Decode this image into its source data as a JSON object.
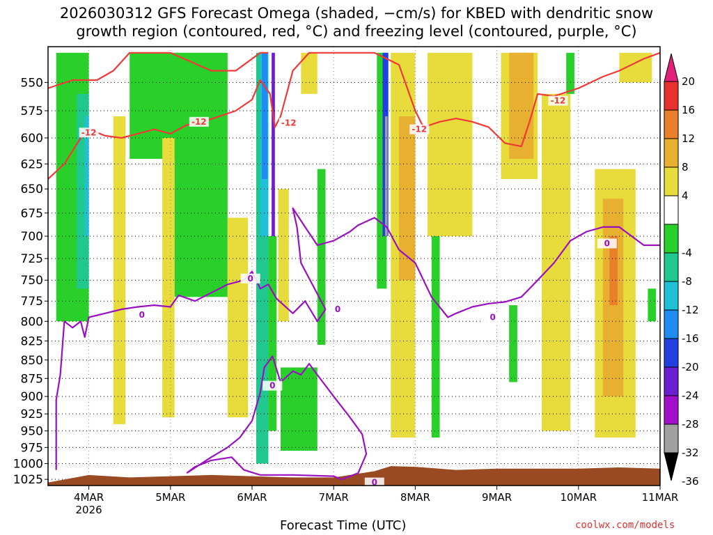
{
  "title_line1": "2026030312 GFS Forecast Omega (shaded, −cm/s) for KBED with dendritic snow",
  "title_line2": "growth region (contoured, red, °C) and freezing level (contoured, purple, °C)",
  "footer": {
    "xlabel": "Forecast Time (UTC)",
    "source": "coolwx.com/models"
  },
  "chart_data": {
    "type": "heatmap",
    "title": "2026030312 GFS Forecast Omega (shaded, −cm/s) for KBED with dendritic snow growth region (contoured, red, °C) and freezing level (contoured, purple, °C)",
    "xlabel": "Forecast Time (UTC)",
    "ylabel": "",
    "x_ticks": [
      {
        "t": 0.5,
        "label": "4MAR",
        "sub": "2026"
      },
      {
        "t": 1.5,
        "label": "5MAR",
        "sub": ""
      },
      {
        "t": 2.5,
        "label": "6MAR",
        "sub": ""
      },
      {
        "t": 3.5,
        "label": "7MAR",
        "sub": ""
      },
      {
        "t": 4.5,
        "label": "8MAR",
        "sub": ""
      },
      {
        "t": 5.5,
        "label": "9MAR",
        "sub": ""
      },
      {
        "t": 6.5,
        "label": "10MAR",
        "sub": ""
      },
      {
        "t": 7.5,
        "label": "11MAR",
        "sub": ""
      }
    ],
    "xlim": [
      0,
      7.5
    ],
    "y_ticks": [
      550,
      575,
      600,
      625,
      650,
      675,
      700,
      725,
      750,
      775,
      800,
      825,
      850,
      875,
      900,
      925,
      950,
      975,
      1000,
      1025
    ],
    "ylim": [
      520,
      1035
    ],
    "y_scale": "log-pressure",
    "grid": true,
    "colorbar": {
      "ticks": [
        20,
        16,
        12,
        8,
        4,
        -4,
        -8,
        -12,
        -16,
        -20,
        -24,
        -28,
        -32,
        -36
      ],
      "bins": [
        {
          "range": [
            16,
            20
          ],
          "color": "#e83030"
        },
        {
          "range": [
            12,
            16
          ],
          "color": "#e8802a"
        },
        {
          "range": [
            8,
            12
          ],
          "color": "#e8b030"
        },
        {
          "range": [
            4,
            8
          ],
          "color": "#e8dc3c"
        },
        {
          "range": [
            -4,
            4
          ],
          "color": "#ffffff"
        },
        {
          "range": [
            -8,
            -4
          ],
          "color": "#2ad02a"
        },
        {
          "range": [
            -12,
            -8
          ],
          "color": "#20c890"
        },
        {
          "range": [
            -16,
            -12
          ],
          "color": "#20c0d8"
        },
        {
          "range": [
            -20,
            -16
          ],
          "color": "#1e8cf0"
        },
        {
          "range": [
            -24,
            -20
          ],
          "color": "#2040e0"
        },
        {
          "range": [
            -28,
            -24
          ],
          "color": "#6a20d0"
        },
        {
          "range": [
            -32,
            -28
          ],
          "color": "#a010c8"
        },
        {
          "range": [
            -36,
            -32
          ],
          "color": "#a0a0a0"
        }
      ],
      "top_arrow_color": "#e0207a",
      "bottom_arrow_color": "#000000"
    },
    "terrain_color": "#9a4a22",
    "terrain": [
      [
        0,
        1030
      ],
      [
        0.5,
        1018
      ],
      [
        1,
        1022
      ],
      [
        1.5,
        1020
      ],
      [
        2,
        1018
      ],
      [
        2.5,
        1020
      ],
      [
        3,
        1022
      ],
      [
        3.5,
        1022
      ],
      [
        4,
        1012
      ],
      [
        4.2,
        1004
      ],
      [
        4.5,
        1005
      ],
      [
        5,
        1010
      ],
      [
        5.5,
        1008
      ],
      [
        6,
        1008
      ],
      [
        6.5,
        1008
      ],
      [
        7,
        1006
      ],
      [
        7.5,
        1008
      ]
    ],
    "omega_patches": [
      {
        "t": [
          0.1,
          0.5
        ],
        "p": [
          525,
          800
        ],
        "value": -8
      },
      {
        "t": [
          0.35,
          0.5
        ],
        "p": [
          560,
          760
        ],
        "value": -12
      },
      {
        "t": [
          0.45,
          0.5
        ],
        "p": [
          580,
          700
        ],
        "value": -16
      },
      {
        "t": [
          1.0,
          1.6
        ],
        "p": [
          525,
          620
        ],
        "value": -8
      },
      {
        "t": [
          1.55,
          2.2
        ],
        "p": [
          525,
          770
        ],
        "value": -8
      },
      {
        "t": [
          2.55,
          2.7
        ],
        "p": [
          525,
          1000
        ],
        "value": -12
      },
      {
        "t": [
          2.6,
          2.7
        ],
        "p": [
          525,
          700
        ],
        "value": -16
      },
      {
        "t": [
          2.62,
          2.69
        ],
        "p": [
          525,
          640
        ],
        "value": -20
      },
      {
        "t": [
          2.74,
          2.78
        ],
        "p": [
          525,
          700
        ],
        "value": -28
      },
      {
        "t": [
          2.7,
          2.8
        ],
        "p": [
          700,
          950
        ],
        "value": -8
      },
      {
        "t": [
          2.85,
          3.3
        ],
        "p": [
          860,
          980
        ],
        "value": -8
      },
      {
        "t": [
          3.3,
          3.4
        ],
        "p": [
          630,
          830
        ],
        "value": -8
      },
      {
        "t": [
          4.03,
          4.15
        ],
        "p": [
          525,
          760
        ],
        "value": -8
      },
      {
        "t": [
          4.1,
          4.17
        ],
        "p": [
          525,
          700
        ],
        "value": -24
      },
      {
        "t": [
          4.13,
          4.16
        ],
        "p": [
          580,
          700
        ],
        "value": -36
      },
      {
        "t": [
          4.7,
          4.8
        ],
        "p": [
          690,
          960
        ],
        "value": -8
      },
      {
        "t": [
          5.65,
          5.75
        ],
        "p": [
          780,
          880
        ],
        "value": -8
      },
      {
        "t": [
          6.35,
          6.45
        ],
        "p": [
          525,
          560
        ],
        "value": -8
      },
      {
        "t": [
          7.35,
          7.45
        ],
        "p": [
          760,
          800
        ],
        "value": -8
      },
      {
        "t": [
          0.8,
          0.95
        ],
        "p": [
          580,
          940
        ],
        "value": 4
      },
      {
        "t": [
          1.4,
          1.55
        ],
        "p": [
          600,
          930
        ],
        "value": 4
      },
      {
        "t": [
          2.2,
          2.45
        ],
        "p": [
          680,
          930
        ],
        "value": 4
      },
      {
        "t": [
          2.82,
          2.95
        ],
        "p": [
          650,
          800
        ],
        "value": 4
      },
      {
        "t": [
          3.1,
          3.3
        ],
        "p": [
          525,
          560
        ],
        "value": 4
      },
      {
        "t": [
          4.2,
          4.5
        ],
        "p": [
          525,
          960
        ],
        "value": 4
      },
      {
        "t": [
          4.3,
          4.5
        ],
        "p": [
          580,
          750
        ],
        "value": 8
      },
      {
        "t": [
          4.65,
          5.2
        ],
        "p": [
          525,
          700
        ],
        "value": 4
      },
      {
        "t": [
          5.55,
          6.0
        ],
        "p": [
          525,
          640
        ],
        "value": 4
      },
      {
        "t": [
          5.65,
          5.95
        ],
        "p": [
          525,
          620
        ],
        "value": 8
      },
      {
        "t": [
          6.05,
          6.4
        ],
        "p": [
          560,
          950
        ],
        "value": 4
      },
      {
        "t": [
          6.7,
          7.2
        ],
        "p": [
          630,
          960
        ],
        "value": 4
      },
      {
        "t": [
          6.8,
          7.05
        ],
        "p": [
          660,
          900
        ],
        "value": 8
      },
      {
        "t": [
          6.88,
          6.98
        ],
        "p": [
          700,
          780
        ],
        "value": 12
      },
      {
        "t": [
          7.0,
          7.4
        ],
        "p": [
          525,
          550
        ],
        "value": 4
      }
    ],
    "series": [
      {
        "name": "-12",
        "color": "#f03838",
        "label_points": [
          [
            0.5,
            595
          ],
          [
            1.85,
            585
          ],
          [
            2.95,
            586
          ],
          [
            4.55,
            592
          ],
          [
            6.25,
            566
          ]
        ],
        "lines": [
          [
            [
              0,
              555
            ],
            [
              0.3,
              548
            ],
            [
              0.6,
              548
            ],
            [
              0.8,
              540
            ],
            [
              1.0,
              525
            ],
            [
              1.5,
              525
            ],
            [
              2.0,
              540
            ],
            [
              2.3,
              540
            ],
            [
              2.6,
              525
            ],
            [
              2.7,
              525
            ]
          ],
          [
            [
              0,
              640
            ],
            [
              0.2,
              625
            ],
            [
              0.4,
              600
            ],
            [
              0.5,
              592
            ],
            [
              0.7,
              598
            ],
            [
              0.9,
              600
            ],
            [
              1.1,
              596
            ],
            [
              1.3,
              592
            ],
            [
              1.5,
              596
            ],
            [
              1.7,
              588
            ],
            [
              1.9,
              585
            ],
            [
              2.1,
              580
            ],
            [
              2.3,
              575
            ],
            [
              2.5,
              565
            ],
            [
              2.6,
              548
            ],
            [
              2.72,
              560
            ],
            [
              2.78,
              590
            ],
            [
              2.85,
              580
            ],
            [
              3.0,
              540
            ],
            [
              3.2,
              525
            ],
            [
              4.0,
              525
            ],
            [
              4.3,
              535
            ],
            [
              4.5,
              575
            ],
            [
              4.6,
              590
            ]
          ],
          [
            [
              4.6,
              590
            ],
            [
              4.8,
              585
            ],
            [
              5.0,
              582
            ],
            [
              5.2,
              585
            ],
            [
              5.4,
              590
            ],
            [
              5.6,
              605
            ],
            [
              5.8,
              608
            ],
            [
              5.9,
              585
            ],
            [
              6.0,
              560
            ],
            [
              6.2,
              562
            ],
            [
              6.5,
              555
            ],
            [
              6.8,
              545
            ],
            [
              7.0,
              540
            ],
            [
              7.3,
              530
            ],
            [
              7.5,
              525
            ]
          ]
        ]
      },
      {
        "name": "0",
        "color": "#9a10c0",
        "label_points": [
          [
            1.15,
            792
          ],
          [
            2.48,
            748
          ],
          [
            3.55,
            785
          ],
          [
            5.45,
            795
          ],
          [
            6.85,
            708
          ],
          [
            2.75,
            885
          ],
          [
            4.0,
            1030
          ]
        ],
        "lines": [
          [
            [
              0.1,
              1010
            ],
            [
              0.1,
              905
            ],
            [
              0.15,
              870
            ],
            [
              0.2,
              800
            ],
            [
              0.3,
              808
            ],
            [
              0.4,
              800
            ],
            [
              0.45,
              820
            ],
            [
              0.5,
              795
            ],
            [
              0.7,
              790
            ],
            [
              0.9,
              785
            ],
            [
              1.1,
              782
            ],
            [
              1.3,
              780
            ],
            [
              1.5,
              782
            ],
            [
              1.6,
              768
            ],
            [
              1.8,
              775
            ],
            [
              2.0,
              765
            ],
            [
              2.2,
              755
            ],
            [
              2.4,
              750
            ],
            [
              2.5,
              740
            ],
            [
              2.6,
              760
            ],
            [
              2.7,
              755
            ],
            [
              2.8,
              772
            ],
            [
              3.0,
              790
            ],
            [
              3.15,
              775
            ],
            [
              3.3,
              800
            ],
            [
              3.4,
              785
            ]
          ],
          [
            [
              3.4,
              785
            ],
            [
              3.1,
              730
            ],
            [
              3.05,
              690
            ],
            [
              3.0,
              670
            ],
            [
              3.15,
              690
            ],
            [
              3.3,
              710
            ],
            [
              3.5,
              705
            ],
            [
              3.7,
              695
            ],
            [
              3.8,
              688
            ],
            [
              4.0,
              680
            ],
            [
              4.15,
              690
            ],
            [
              4.3,
              715
            ],
            [
              4.5,
              730
            ],
            [
              4.7,
              770
            ],
            [
              4.9,
              795
            ],
            [
              5.0,
              790
            ],
            [
              5.2,
              782
            ],
            [
              5.4,
              778
            ],
            [
              5.6,
              776
            ],
            [
              5.8,
              770
            ],
            [
              6.0,
              750
            ],
            [
              6.2,
              730
            ],
            [
              6.4,
              705
            ],
            [
              6.6,
              695
            ],
            [
              6.8,
              690
            ],
            [
              7.0,
              690
            ],
            [
              7.3,
              710
            ],
            [
              7.5,
              710
            ]
          ],
          [
            [
              1.7,
              1015
            ],
            [
              2.0,
              990
            ],
            [
              2.2,
              975
            ],
            [
              2.35,
              960
            ],
            [
              2.5,
              935
            ],
            [
              2.6,
              895
            ],
            [
              2.65,
              860
            ],
            [
              2.75,
              845
            ],
            [
              2.85,
              880
            ],
            [
              3.0,
              865
            ],
            [
              3.1,
              870
            ],
            [
              3.2,
              855
            ],
            [
              3.3,
              870
            ],
            [
              3.5,
              900
            ],
            [
              3.7,
              930
            ],
            [
              3.85,
              955
            ],
            [
              3.9,
              985
            ],
            [
              3.8,
              1015
            ],
            [
              3.6,
              1025
            ],
            [
              3.5,
              1020
            ],
            [
              3.0,
              1018
            ],
            [
              2.6,
              1018
            ],
            [
              2.4,
              1010
            ],
            [
              2.25,
              990
            ],
            [
              2.0,
              995
            ],
            [
              1.8,
              1005
            ],
            [
              1.7,
              1015
            ]
          ]
        ]
      }
    ]
  }
}
